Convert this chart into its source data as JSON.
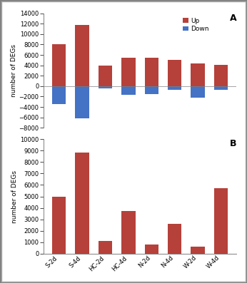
{
  "categories": [
    "S-2d",
    "S-4d",
    "HC-2d",
    "HC-4d",
    "N-2d",
    "N-4d",
    "W-2d",
    "W-4d"
  ],
  "panel_a": {
    "up": [
      8000,
      11700,
      4000,
      5500,
      5400,
      5000,
      4300,
      4100
    ],
    "down": [
      -3500,
      -6200,
      -400,
      -1700,
      -1500,
      -700,
      -2200,
      -700
    ]
  },
  "panel_b": {
    "up": [
      5000,
      8800,
      1100,
      3700,
      800,
      2600,
      600,
      5700
    ]
  },
  "up_color": "#b5413a",
  "down_color": "#4472c4",
  "ylabel": "number of DEGs",
  "ylim_a": [
    -8000,
    14000
  ],
  "ylim_b": [
    0,
    10000
  ],
  "yticks_a": [
    -8000,
    -6000,
    -4000,
    -2000,
    0,
    2000,
    4000,
    6000,
    8000,
    10000,
    12000,
    14000
  ],
  "yticks_b": [
    0,
    1000,
    2000,
    3000,
    4000,
    5000,
    6000,
    7000,
    8000,
    9000,
    10000
  ],
  "label_a": "A",
  "label_b": "B",
  "legend_up": "Up",
  "legend_down": "Down",
  "background_color": "#ffffff",
  "bar_width": 0.6,
  "tick_fontsize": 6,
  "ylabel_fontsize": 6.5,
  "label_fontsize": 9
}
